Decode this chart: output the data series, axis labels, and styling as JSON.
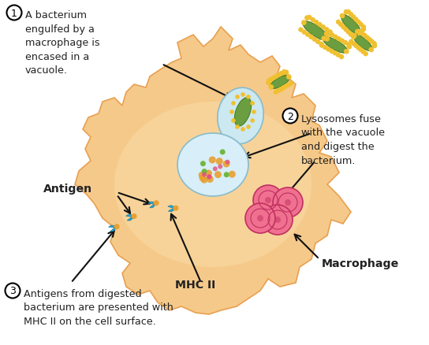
{
  "bg_color": "#ffffff",
  "macrophage_color": "#f5c98a",
  "macrophage_edge_color": "#e8a050",
  "inner_oval_color": "#f8daa0",
  "vacuole_color": "#cce8f0",
  "vacuole_border": "#88bbcc",
  "bacterium_green": "#6a9e40",
  "bacterium_spike": "#f0c030",
  "lysosome_pink": "#e8708a",
  "lysosome_border": "#c04060",
  "mhc_color": "#28a8d0",
  "mhc_edge": "#1878a0",
  "antigen_orange": "#e8a030",
  "text_color": "#222222",
  "arrow_color": "#111111",
  "label1": "A bacterium\nengulfed by a\nmacrophage is\nencased in a\nvacuole.",
  "label2": "Lysosomes fuse\nwith the vacuole\nand digest the\nbacterium.",
  "label3": "Antigens from digested\nbacterium are presented with\nMHC II on the cell surface.",
  "antigen_label": "Antigen",
  "macrophage_label": "Macrophage",
  "mhc_label": "MHC II"
}
